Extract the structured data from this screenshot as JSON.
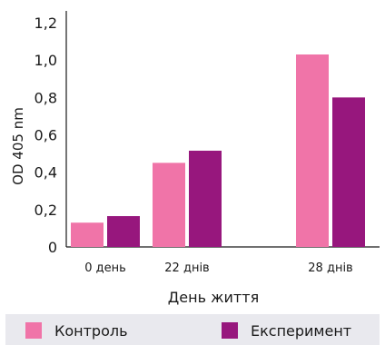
{
  "chart_data": {
    "type": "bar",
    "categories": [
      "0 день",
      "22 днів",
      "28 днів"
    ],
    "series": [
      {
        "name": "Контроль",
        "values": [
          0.13,
          0.45,
          1.03
        ],
        "color": "#f074a8"
      },
      {
        "name": "Експеримент",
        "values": [
          0.165,
          0.515,
          0.8
        ],
        "color": "#97177d"
      }
    ],
    "title": "",
    "xlabel": "День життя",
    "ylabel": "OD 405 nm",
    "ylim": [
      0,
      1.2
    ],
    "yticks": [
      "0",
      "0,2",
      "0,4",
      "0,6",
      "0,8",
      "1,0",
      "1,2"
    ],
    "grid": false,
    "legend_position": "bottom"
  },
  "legend": {
    "items": [
      {
        "label": "Контроль",
        "color": "#f074a8"
      },
      {
        "label": "Експеримент",
        "color": "#97177d"
      }
    ]
  }
}
